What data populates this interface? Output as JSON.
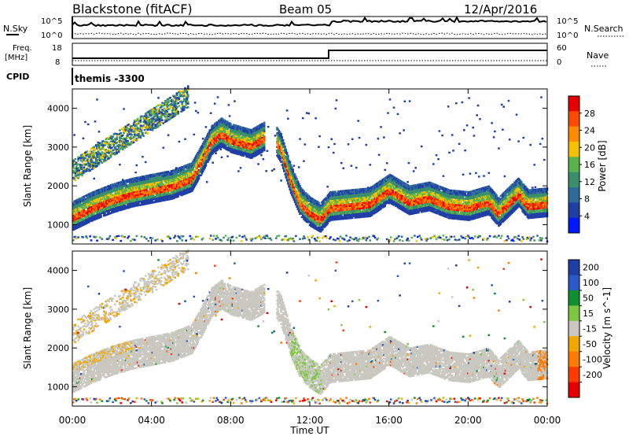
{
  "header": {
    "station": "Blackstone (fitACF)",
    "beam": "Beam 05",
    "date": "12/Apr/2016"
  },
  "top_panels": {
    "nsky_label": "N.Sky",
    "nsearch_label": "N.Search",
    "noise_ticks": [
      "10^5",
      "10^0"
    ],
    "freq_label": "Freq.",
    "freq_unit": "[MHz]",
    "freq_ticks": [
      "18",
      "8"
    ],
    "nave_label": "Nave",
    "nave_ticks": [
      "60",
      "0"
    ],
    "cpid_label": "CPID",
    "cpid_value": "themis -3300"
  },
  "colors": {
    "power_scale": [
      "#0018ff",
      "#1f3fa6",
      "#2e6b9a",
      "#3a8f6a",
      "#5ab24a",
      "#f2c200",
      "#ff8c00",
      "#ff4a00",
      "#e60000"
    ],
    "velocity_scale": [
      "#1f3fa6",
      "#2a58c9",
      "#0f8f2f",
      "#7dc641",
      "#c8c8c0",
      "#f2a600",
      "#ff7a00",
      "#ff3b00",
      "#e60000"
    ],
    "ground_scatter": "#c8c8c0"
  },
  "chart_data": [
    {
      "type": "heatmap",
      "title": "Power",
      "xlabel": "Time UT",
      "ylabel": "Slant Range [km]",
      "x_ticks": [
        "00:00",
        "04:00",
        "08:00",
        "12:00",
        "16:00",
        "20:00",
        "00:00"
      ],
      "xlim": [
        0,
        24
      ],
      "ylim": [
        500,
        4500
      ],
      "y_ticks": [
        1000,
        2000,
        3000,
        4000
      ],
      "colorbar_label": "Power [dB]",
      "colorbar_ticks": [
        4,
        8,
        12,
        16,
        20,
        24,
        28
      ],
      "colorbar_range": [
        0,
        32
      ],
      "series": [
        {
          "x": [
            0,
            1,
            2,
            3,
            4,
            5,
            6,
            6.5,
            7,
            7.5,
            8,
            9,
            10,
            10.5,
            11,
            11.5,
            12,
            12.5,
            13,
            14,
            15,
            16,
            17,
            18,
            19,
            20,
            21,
            21.5,
            22,
            22.5,
            23,
            24
          ],
          "y": [
            1150,
            1400,
            1600,
            1750,
            1850,
            1950,
            2150,
            2600,
            3100,
            3300,
            3150,
            3000,
            3300,
            2900,
            2100,
            1500,
            1250,
            1100,
            1400,
            1450,
            1500,
            1850,
            1550,
            1650,
            1450,
            1400,
            1550,
            1250,
            1500,
            1750,
            1450,
            1500
          ]
        }
      ]
    },
    {
      "type": "heatmap",
      "title": "Velocity",
      "xlabel": "Time UT",
      "ylabel": "Slant Range [km]",
      "x_ticks": [
        "00:00",
        "04:00",
        "08:00",
        "12:00",
        "16:00",
        "20:00",
        "00:00"
      ],
      "xlim": [
        0,
        24
      ],
      "ylim": [
        500,
        4500
      ],
      "y_ticks": [
        1000,
        2000,
        3000,
        4000
      ],
      "colorbar_label": "Velocity [m s^-1]",
      "colorbar_ticks": [
        200,
        100,
        50,
        15,
        -15,
        -50,
        -100,
        -200
      ]
    }
  ]
}
